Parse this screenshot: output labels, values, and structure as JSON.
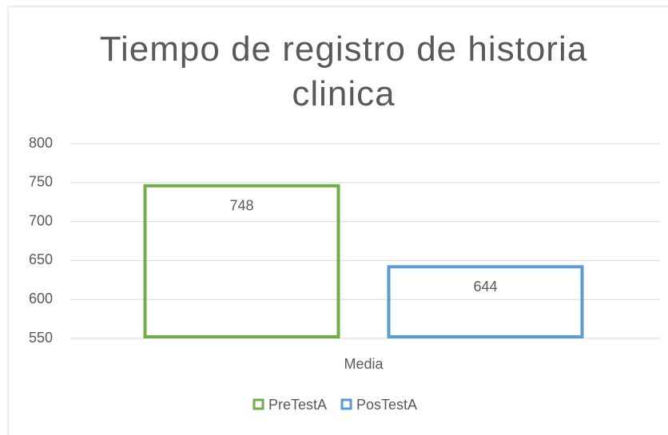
{
  "chart_data": {
    "type": "bar",
    "title": "Tiempo de registro de historia clinica",
    "categories": [
      "Media"
    ],
    "series": [
      {
        "name": "PreTestA",
        "color": "#70ad47",
        "values": [
          748
        ]
      },
      {
        "name": "PosTestA",
        "color": "#5b9bd5",
        "values": [
          644
        ]
      }
    ],
    "ylim": [
      550,
      800
    ],
    "yticks": [
      550,
      600,
      650,
      700,
      750,
      800
    ],
    "grid": true,
    "legend": "bottom"
  }
}
